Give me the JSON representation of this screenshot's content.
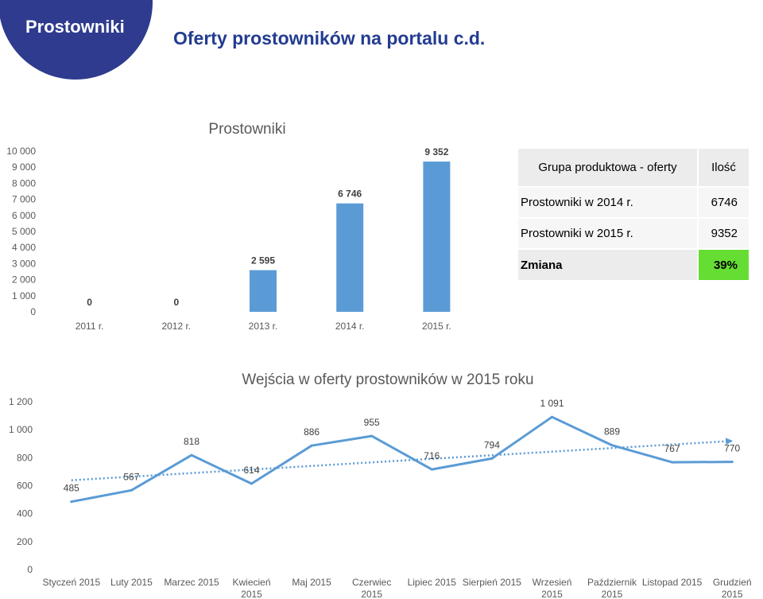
{
  "badge": {
    "label": "Prostowniki"
  },
  "slide": {
    "title": "Oferty prostowników na portalu c.d."
  },
  "colors": {
    "badge": "#2e3b8e",
    "title": "#233c91",
    "series": "#5b9bd5",
    "highlight": "#66dd33"
  },
  "table": {
    "headers": [
      "Grupa produktowa - oferty",
      "Ilość"
    ],
    "rows": [
      {
        "label": "Prostowniki w 2014 r.",
        "value": "6746"
      },
      {
        "label": "Prostowniki w 2015 r.",
        "value": "9352"
      },
      {
        "label": "Zmiana",
        "value": "39%"
      }
    ]
  },
  "chart_data": [
    {
      "type": "bar",
      "title": "Prostowniki",
      "categories": [
        "2011 r.",
        "2012 r.",
        "2013 r.",
        "2014 r.",
        "2015 r."
      ],
      "values": [
        0,
        0,
        2595,
        6746,
        9352
      ],
      "ylim": [
        0,
        10000
      ],
      "yticks": [
        0,
        1000,
        2000,
        3000,
        4000,
        5000,
        6000,
        7000,
        8000,
        9000,
        10000
      ],
      "data_labels": true,
      "grid": false
    },
    {
      "type": "line",
      "title": "Wejścia w oferty prostowników w 2015 roku",
      "categories": [
        "Styczeń 2015",
        "Luty 2015",
        "Marzec 2015",
        "Kwiecień 2015",
        "Maj 2015",
        "Czerwiec 2015",
        "Lipiec 2015",
        "Sierpień 2015",
        "Wrzesień 2015",
        "Październik 2015",
        "Listopad 2015",
        "Grudzień 2015"
      ],
      "values": [
        485,
        567,
        818,
        614,
        886,
        955,
        716,
        794,
        1091,
        889,
        767,
        770
      ],
      "ylim": [
        0,
        1200
      ],
      "yticks": [
        0,
        200,
        400,
        600,
        800,
        1000,
        1200
      ],
      "data_labels": true,
      "trendline": true,
      "grid": false
    }
  ]
}
